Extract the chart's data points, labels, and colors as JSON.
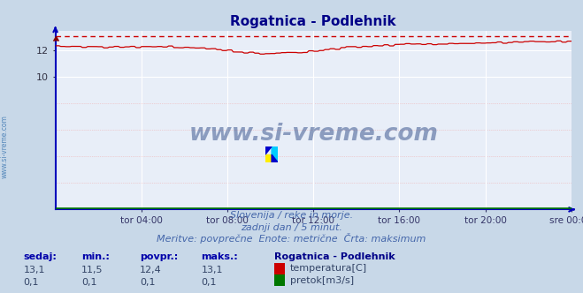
{
  "title": "Rogatnica - Podlehnik",
  "bg_color": "#c8d8e8",
  "plot_bg_color": "#e8eef8",
  "grid_white_color": "#ffffff",
  "grid_pink_color": "#f0b0b0",
  "temp_color": "#cc0000",
  "flow_color": "#007700",
  "axis_color": "#0000bb",
  "x_tick_labels": [
    "tor 04:00",
    "tor 08:00",
    "tor 12:00",
    "tor 16:00",
    "tor 20:00",
    "sre 00:00"
  ],
  "x_tick_positions": [
    0.1667,
    0.3333,
    0.5,
    0.6667,
    0.8333,
    1.0
  ],
  "y_ticks": [
    10,
    12
  ],
  "ylim": [
    0,
    13.5
  ],
  "temp_max_val": 13.1,
  "subtitle1": "Slovenija / reke in morje.",
  "subtitle2": "zadnji dan / 5 minut.",
  "subtitle3": "Meritve: povprečne  Enote: metrične  Črta: maksimum",
  "legend_title": "Rogatnica - Podlehnik",
  "legend_items": [
    {
      "label": "temperatura[C]",
      "color": "#cc0000"
    },
    {
      "label": "pretok[m3/s]",
      "color": "#007700"
    }
  ],
  "stats_headers": [
    "sedaj:",
    "min.:",
    "povpr.:",
    "maks.:"
  ],
  "stats_temp": [
    "13,1",
    "11,5",
    "12,4",
    "13,1"
  ],
  "stats_flow": [
    "0,1",
    "0,1",
    "0,1",
    "0,1"
  ],
  "watermark": "www.si-vreme.com",
  "watermark_color": "#1a3a7a",
  "sidebar_text": "www.si-vreme.com",
  "sidebar_color": "#5588bb"
}
